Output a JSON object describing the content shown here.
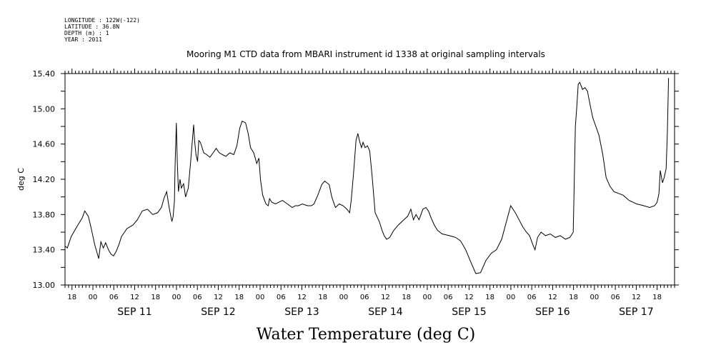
{
  "header": {
    "meta_lines": [
      "LONGITUDE : 122W(-122)",
      "LATITUDE : 36.8N",
      "DEPTH (m) : 1",
      "YEAR : 2011"
    ]
  },
  "chart_data": {
    "type": "line",
    "title": "Mooring M1 CTD data from MBARI instrument id 1338 at original sampling intervals",
    "xlabel": "Water Temperature (deg C)",
    "ylabel": "deg C",
    "ylim": [
      13.0,
      15.4
    ],
    "yticks": [
      "13.00",
      "13.40",
      "13.80",
      "14.20",
      "14.60",
      "15.00",
      "15.40"
    ],
    "xlim": [
      "2011-09-10T16:00",
      "2011-09-17T23:00"
    ],
    "hour_labels": [
      "00",
      "06",
      "12",
      "18"
    ],
    "day_labels": [
      "SEP 11",
      "SEP 12",
      "SEP 13",
      "SEP 14",
      "SEP 15",
      "SEP 16",
      "SEP 17"
    ],
    "grid": false,
    "series": [
      {
        "color": "#000000",
        "x": [
          "2011-09-10T16:03",
          "2011-09-10T16:40",
          "2011-09-10T17:46",
          "2011-09-10T19:40",
          "2011-09-10T20:56",
          "2011-09-10T21:40",
          "2011-09-10T22:41",
          "2011-09-10T23:25",
          "2011-09-11T00:31",
          "2011-09-11T01:40",
          "2011-09-11T02:18",
          "2011-09-11T03:00",
          "2011-09-11T03:39",
          "2011-09-11T04:28",
          "2011-09-11T05:12",
          "2011-09-11T05:56",
          "2011-09-11T06:40",
          "2011-09-11T07:29",
          "2011-09-11T08:13",
          "2011-09-11T09:46",
          "2011-09-11T11:29",
          "2011-09-11T12:46",
          "2011-09-11T14:11",
          "2011-09-11T15:40",
          "2011-09-11T17:10",
          "2011-09-11T18:34",
          "2011-09-11T19:40",
          "2011-09-11T20:24",
          "2011-09-11T21:11",
          "2011-09-11T21:49",
          "2011-09-11T22:22",
          "2011-09-11T22:41",
          "2011-09-11T23:03",
          "2011-09-11T23:25",
          "2011-09-11T23:36",
          "2011-09-11T23:58",
          "2011-09-12T00:14",
          "2011-09-12T00:34",
          "2011-09-12T01:01",
          "2011-09-12T01:24",
          "2011-09-12T02:02",
          "2011-09-12T02:37",
          "2011-09-12T03:23",
          "2011-09-12T04:01",
          "2011-09-12T04:39",
          "2011-09-12T04:56",
          "2011-09-12T05:12",
          "2011-09-12T05:36",
          "2011-09-12T06:04",
          "2011-09-12T06:24",
          "2011-09-12T06:51",
          "2011-09-12T07:51",
          "2011-09-12T08:41",
          "2011-09-12T09:35",
          "2011-09-12T10:30",
          "2011-09-12T11:24",
          "2011-09-12T12:19",
          "2011-09-12T13:13",
          "2011-09-12T14:11",
          "2011-09-12T15:18",
          "2011-09-12T16:27",
          "2011-09-12T17:21",
          "2011-09-12T18:10",
          "2011-09-12T18:51",
          "2011-09-12T19:51",
          "2011-09-12T20:35",
          "2011-09-12T21:16",
          "2011-09-12T22:11",
          "2011-09-12T23:03",
          "2011-09-12T23:39",
          "2011-09-13T00:07",
          "2011-09-13T00:45",
          "2011-09-13T01:40",
          "2011-09-13T02:21",
          "2011-09-13T02:43",
          "2011-09-13T03:21",
          "2011-09-13T04:28",
          "2011-09-13T05:23",
          "2011-09-13T06:24",
          "2011-09-13T07:51",
          "2011-09-13T09:13",
          "2011-09-13T10:08",
          "2011-09-13T11:02",
          "2011-09-13T12:08",
          "2011-09-13T13:35",
          "2011-09-13T14:44",
          "2011-09-13T15:29",
          "2011-09-13T16:35",
          "2011-09-13T17:43",
          "2011-09-13T18:32",
          "2011-09-13T19:51",
          "2011-09-13T20:35",
          "2011-09-13T21:38",
          "2011-09-13T22:44",
          "2011-09-13T23:50",
          "2011-09-14T00:56",
          "2011-09-14T01:43",
          "2011-09-14T02:10",
          "2011-09-14T02:54",
          "2011-09-14T03:32",
          "2011-09-14T04:04",
          "2011-09-14T04:39",
          "2011-09-14T05:07",
          "2011-09-14T05:34",
          "2011-09-14T06:07",
          "2011-09-14T06:51",
          "2011-09-14T07:29",
          "2011-09-14T08:08",
          "2011-09-14T09:02",
          "2011-09-14T10:14",
          "2011-09-14T11:02",
          "2011-09-14T11:38",
          "2011-09-14T12:19",
          "2011-09-14T13:13",
          "2011-09-14T14:22",
          "2011-09-14T15:40",
          "2011-09-14T17:16",
          "2011-09-14T18:23",
          "2011-09-14T19:18",
          "2011-09-14T20:02",
          "2011-09-14T20:46",
          "2011-09-14T21:38",
          "2011-09-14T22:44",
          "2011-09-14T23:36",
          "2011-09-15T00:20",
          "2011-09-15T01:07",
          "2011-09-15T02:02",
          "2011-09-15T02:57",
          "2011-09-15T04:17",
          "2011-09-15T06:18",
          "2011-09-15T08:10",
          "2011-09-15T09:35",
          "2011-09-15T11:02",
          "2011-09-15T12:30",
          "2011-09-15T13:57",
          "2011-09-15T15:18",
          "2011-09-15T16:52",
          "2011-09-15T18:23",
          "2011-09-15T19:51",
          "2011-09-15T21:22",
          "2011-09-15T22:44",
          "2011-09-15T23:58",
          "2011-09-16T01:18",
          "2011-09-16T02:21",
          "2011-09-16T03:26",
          "2011-09-16T04:28",
          "2011-09-16T05:23",
          "2011-09-16T06:18",
          "2011-09-16T06:56",
          "2011-09-16T07:40",
          "2011-09-16T08:41",
          "2011-09-16T09:57",
          "2011-09-16T11:19",
          "2011-09-16T12:46",
          "2011-09-16T14:11",
          "2011-09-16T15:40",
          "2011-09-16T16:57",
          "2011-09-16T17:54",
          "2011-09-16T18:32",
          "2011-09-16T18:54",
          "2011-09-16T19:21",
          "2011-09-16T19:46",
          "2011-09-16T20:35",
          "2011-09-16T21:16",
          "2011-09-16T22:00",
          "2011-09-16T22:44",
          "2011-09-16T23:31",
          "2011-09-17T00:25",
          "2011-09-17T01:18",
          "2011-09-17T02:24",
          "2011-09-17T03:21",
          "2011-09-17T04:28",
          "2011-09-17T05:36",
          "2011-09-17T06:51",
          "2011-09-17T08:13",
          "2011-09-17T09:57",
          "2011-09-17T12:08",
          "2011-09-17T14:11",
          "2011-09-17T15:51",
          "2011-09-17T17:16",
          "2011-09-17T18:00",
          "2011-09-17T18:32",
          "2011-09-17T18:54",
          "2011-09-17T19:32",
          "2011-09-17T20:02",
          "2011-09-17T20:35",
          "2011-09-17T20:56",
          "2011-09-17T21:16"
        ],
        "y": [
          13.44,
          13.42,
          13.55,
          13.68,
          13.76,
          13.84,
          13.78,
          13.66,
          13.46,
          13.3,
          13.49,
          13.42,
          13.48,
          13.4,
          13.35,
          13.33,
          13.38,
          13.46,
          13.55,
          13.64,
          13.68,
          13.74,
          13.84,
          13.86,
          13.8,
          13.82,
          13.88,
          13.98,
          14.06,
          13.9,
          13.78,
          13.72,
          13.78,
          13.95,
          14.35,
          14.84,
          14.4,
          14.06,
          14.2,
          14.1,
          14.15,
          14.0,
          14.1,
          14.38,
          14.68,
          14.82,
          14.64,
          14.48,
          14.4,
          14.64,
          14.62,
          14.5,
          14.48,
          14.45,
          14.5,
          14.55,
          14.5,
          14.48,
          14.46,
          14.5,
          14.48,
          14.58,
          14.78,
          14.86,
          14.84,
          14.72,
          14.56,
          14.5,
          14.38,
          14.44,
          14.2,
          14.02,
          13.92,
          13.9,
          13.98,
          13.94,
          13.92,
          13.94,
          13.96,
          13.92,
          13.88,
          13.9,
          13.9,
          13.92,
          13.9,
          13.9,
          13.92,
          14.02,
          14.14,
          14.18,
          14.14,
          14.0,
          13.88,
          13.92,
          13.9,
          13.86,
          13.82,
          13.96,
          14.3,
          14.64,
          14.72,
          14.62,
          14.56,
          14.62,
          14.56,
          14.58,
          14.52,
          14.25,
          13.82,
          13.72,
          13.62,
          13.56,
          13.52,
          13.54,
          13.62,
          13.68,
          13.74,
          13.78,
          13.86,
          13.74,
          13.8,
          13.74,
          13.86,
          13.88,
          13.84,
          13.76,
          13.68,
          13.62,
          13.58,
          13.56,
          13.54,
          13.5,
          13.4,
          13.26,
          13.13,
          13.14,
          13.28,
          13.36,
          13.4,
          13.52,
          13.72,
          13.9,
          13.82,
          13.74,
          13.66,
          13.6,
          13.56,
          13.46,
          13.4,
          13.54,
          13.6,
          13.56,
          13.58,
          13.54,
          13.56,
          13.52,
          13.54,
          13.6,
          14.8,
          15.0,
          15.28,
          15.3,
          15.22,
          15.24,
          15.2,
          15.05,
          14.9,
          14.8,
          14.7,
          14.48,
          14.22,
          14.12,
          14.06,
          14.04,
          14.02,
          13.96,
          13.92,
          13.9,
          13.88,
          13.9,
          13.94,
          14.04,
          14.3,
          14.16,
          14.22,
          14.32,
          14.72,
          15.35
        ]
      }
    ]
  }
}
